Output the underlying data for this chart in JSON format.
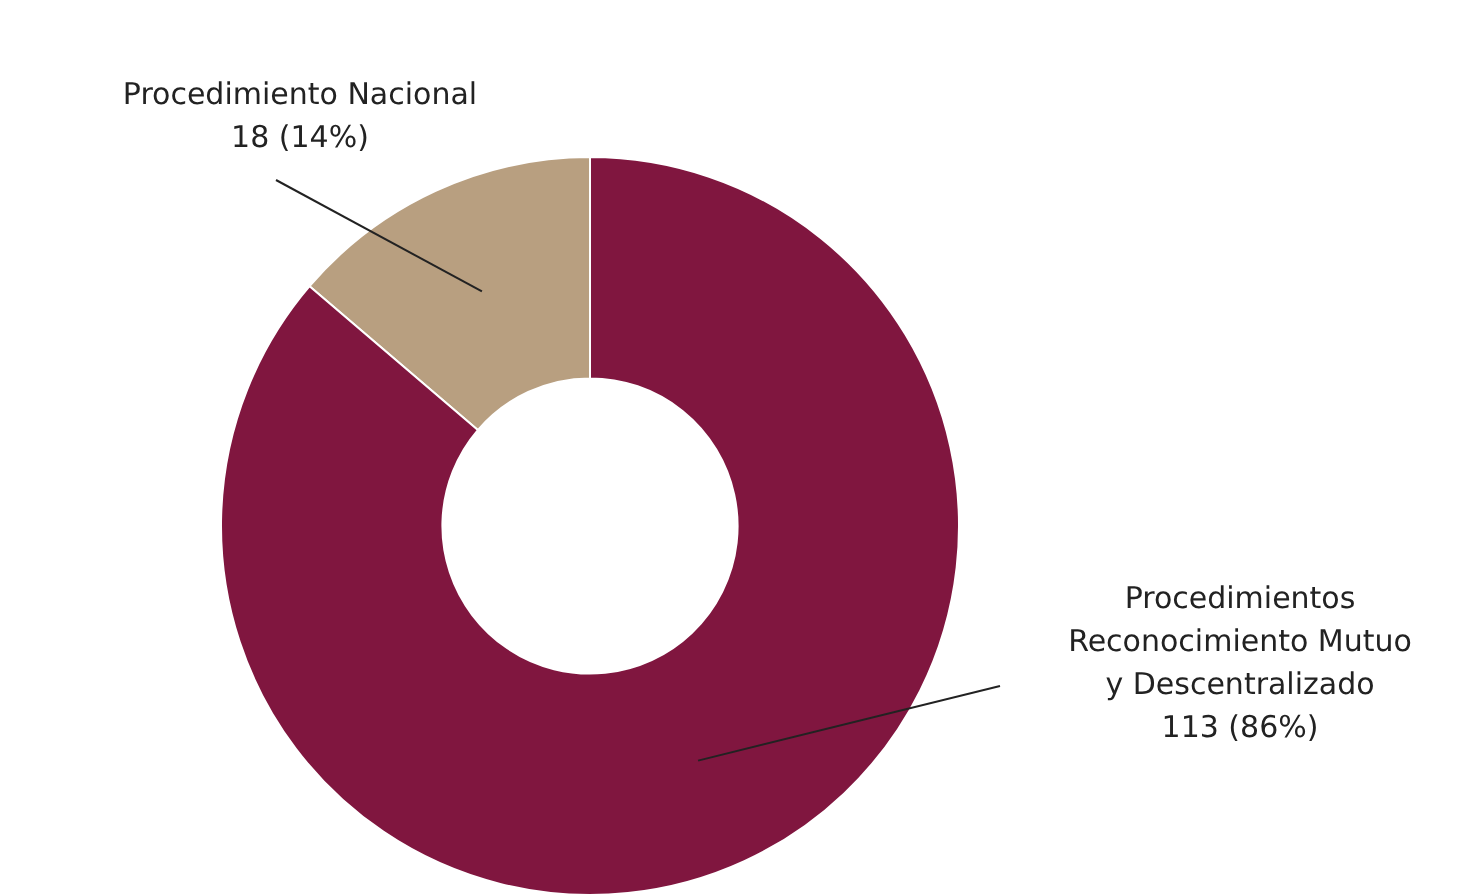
{
  "chart_data": {
    "type": "donut",
    "categories": [
      "Procedimiento Nacional",
      "Procedimientos Reconocimiento Mutuo y Descentralizado"
    ],
    "values": [
      18,
      113
    ],
    "colors": [
      "#b89f80",
      "#80163f"
    ],
    "value_labels": [
      "18 (14%)",
      "113 (86%)"
    ],
    "legend": false
  }
}
